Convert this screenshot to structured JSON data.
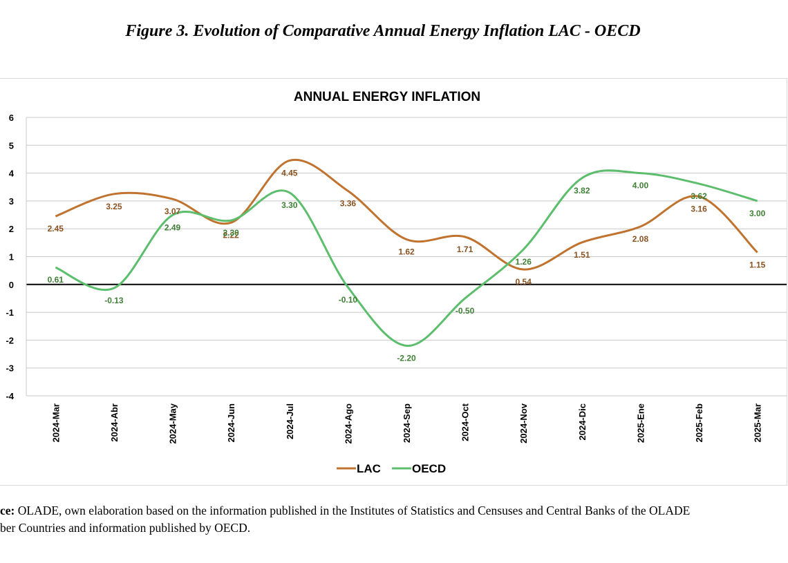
{
  "figure_title": "Figure 3. Evolution of Comparative Annual Energy Inflation LAC - OECD",
  "source": {
    "label": "ce:",
    "line1": "OLADE, own elaboration based on the information published in the Institutes of Statistics and Censuses and Central Banks of the OLADE",
    "line2": "ber Countries and information published by OECD."
  },
  "colors": {
    "LAC": "#c0732e",
    "OECD": "#5cbe6c",
    "LAC_label": "#8a5220",
    "OECD_label": "#3f7f35",
    "grid": "#c8c8c8"
  },
  "chart_data": {
    "type": "line",
    "title": "ANNUAL ENERGY INFLATION",
    "xlabel": "",
    "ylabel": "",
    "categories": [
      "2024-Mar",
      "2024-Abr",
      "2024-May",
      "2024-Jun",
      "2024-Jul",
      "2024-Ago",
      "2024-Sep",
      "2024-Oct",
      "2024-Nov",
      "2024-Dic",
      "2025-Ene",
      "2025-Feb",
      "2025-Mar"
    ],
    "series": [
      {
        "name": "LAC",
        "values": [
          2.45,
          3.25,
          3.07,
          2.22,
          4.45,
          3.36,
          1.62,
          1.71,
          0.54,
          1.51,
          2.08,
          3.16,
          1.15
        ],
        "labels": [
          "2.45",
          "3.25",
          "3.07",
          "2.22",
          "4.45",
          "3.36",
          "1.62",
          "1.71",
          "0.54",
          "1.51",
          "2.08",
          "3.16",
          "1.15"
        ]
      },
      {
        "name": "OECD",
        "values": [
          0.61,
          -0.13,
          2.49,
          2.3,
          3.3,
          -0.1,
          -2.2,
          -0.5,
          1.26,
          3.82,
          4.0,
          3.62,
          3.0
        ],
        "labels": [
          "0.61",
          "-0.13",
          "2.49",
          "2.30",
          "3.30",
          "-0.10",
          "-2.20",
          "-0.50",
          "1.26",
          "3.82",
          "4.00",
          "3.62",
          "3.00"
        ]
      }
    ],
    "ylim": [
      -4,
      6
    ],
    "yticks": [
      "-4",
      "-3",
      "-2",
      "-1",
      "0",
      "1",
      "2",
      "3",
      "4",
      "5",
      "6"
    ],
    "grid": true,
    "smooth": true,
    "legend": "bottom-center"
  }
}
